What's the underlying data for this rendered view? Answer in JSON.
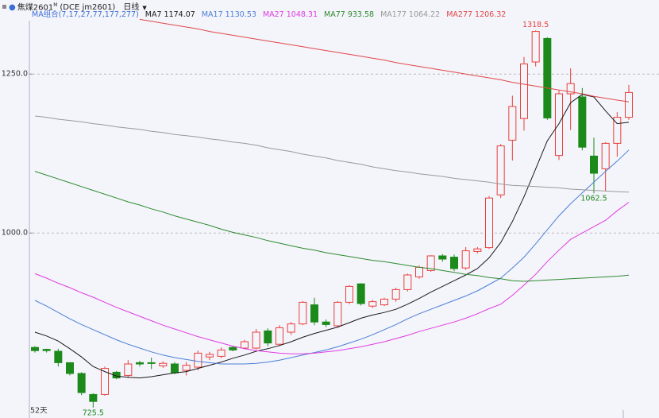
{
  "chart_data": {
    "type": "candlestick",
    "title": "焦煤2601",
    "title_sup": "M",
    "code": "(DCE jm2601)",
    "period": "日线",
    "ma_group": "MA组合(7,17,27,77,177,277)",
    "bar_count_label": "52天",
    "up_color": "#e8403a",
    "down_color": "#1b8a1b",
    "ylim": [
      709,
      1339
    ],
    "yticks": [
      {
        "value": 1000,
        "label": "1000.0"
      },
      {
        "value": 1250,
        "label": "1250.0"
      }
    ],
    "grid": true,
    "open": [
      820,
      817,
      814,
      796,
      779,
      746,
      746,
      781,
      776,
      796,
      796,
      791,
      794,
      784,
      789,
      805,
      806,
      820,
      819,
      819,
      846,
      825,
      844,
      857,
      887,
      860,
      854,
      891,
      920,
      885,
      887,
      896,
      911,
      931,
      941,
      964,
      962,
      945,
      971,
      977,
      1060,
      1146,
      1180,
      1269,
      1306,
      1122,
      1219,
      1214,
      1121,
      1101,
      1141,
      1182
    ],
    "high": [
      822,
      818,
      818,
      797,
      781,
      748,
      790,
      783,
      800,
      799,
      804,
      798,
      797,
      797,
      815,
      813,
      820,
      822,
      832,
      849,
      850,
      855,
      860,
      893,
      898,
      864,
      893,
      918,
      921,
      895,
      898,
      914,
      936,
      949,
      965,
      967,
      966,
      978,
      978,
      1058,
      1140,
      1216,
      1277,
      1318.5,
      1308,
      1224,
      1259,
      1228,
      1150,
      1143,
      1190,
      1233
    ],
    "low": [
      812,
      812,
      790,
      776,
      745,
      725.5,
      744,
      770,
      772,
      790,
      786,
      788,
      778,
      776,
      784,
      800,
      803,
      814,
      817,
      817,
      822,
      822,
      840,
      855,
      855,
      852,
      851,
      888,
      886,
      882,
      885,
      892,
      908,
      928,
      939,
      955,
      940,
      942,
      968,
      975,
      1055,
      1114,
      1161,
      1262,
      1178,
      1115,
      1162,
      1130,
      1062.5,
      1066,
      1120,
      1178
    ],
    "close": [
      815,
      815,
      796,
      779,
      749,
      735,
      787,
      772,
      794,
      794,
      795,
      795,
      780,
      792,
      811,
      809,
      816,
      816,
      829,
      844,
      827,
      851,
      857,
      891,
      860,
      856,
      891,
      916,
      889,
      892,
      896,
      911,
      934,
      946,
      964,
      959,
      944,
      972,
      975,
      1055,
      1137,
      1199,
      1266,
      1317,
      1181,
      1219,
      1235,
      1135,
      1094,
      1141,
      1182,
      1221
    ],
    "series": [
      {
        "name": "MA7",
        "color": "#1a1a1a",
        "values": [
          844,
          838,
          830,
          818,
          805,
          790,
          782,
          775,
          773,
          772,
          774,
          777,
          780,
          782,
          787,
          792,
          797,
          803,
          808,
          814,
          818,
          823,
          829,
          836,
          842,
          847,
          852,
          859,
          866,
          871,
          875,
          880,
          888,
          897,
          907,
          916,
          925,
          934,
          944,
          961,
          985,
          1018,
          1057,
          1101,
          1145,
          1172,
          1205,
          1218,
          1214,
          1192,
          1172,
          1174.07
        ]
      },
      {
        "name": "MA17",
        "color": "#4a7fd6",
        "values": [
          894,
          885,
          875,
          865,
          856,
          848,
          840,
          832,
          825,
          819,
          813,
          808,
          804,
          801,
          798,
          796,
          794,
          794,
          794,
          795,
          797,
          800,
          804,
          808,
          812,
          816,
          821,
          827,
          833,
          840,
          848,
          856,
          865,
          873,
          880,
          887,
          894,
          901,
          909,
          919,
          929,
          945,
          962,
          983,
          1005,
          1027,
          1046,
          1063,
          1080,
          1097,
          1113,
          1130.53
        ]
      },
      {
        "name": "MA27",
        "color": "#e03ce0",
        "values": [
          936,
          929,
          921,
          914,
          906,
          899,
          891,
          883,
          876,
          869,
          862,
          855,
          849,
          843,
          837,
          832,
          827,
          822,
          818,
          815,
          813,
          811,
          810,
          810,
          811,
          813,
          815,
          818,
          821,
          825,
          829,
          834,
          839,
          845,
          850,
          855,
          860,
          866,
          873,
          881,
          888,
          902,
          918,
          935,
          955,
          973,
          990,
          1000,
          1010,
          1020,
          1035,
          1048.31
        ]
      },
      {
        "name": "MA77",
        "color": "#2e8b2e",
        "values": [
          1097,
          1091,
          1085,
          1079,
          1073,
          1067,
          1061,
          1055,
          1049,
          1044,
          1038,
          1033,
          1027,
          1022,
          1017,
          1012,
          1006,
          1001,
          997,
          993,
          988,
          984,
          980,
          976,
          973,
          969,
          966,
          963,
          960,
          957,
          955,
          952,
          949,
          946,
          944,
          941,
          938,
          935,
          933,
          930,
          928,
          925,
          924,
          925,
          926,
          927,
          928,
          929,
          930,
          931,
          932,
          933.58
        ]
      },
      {
        "name": "MA177",
        "color": "#9a9a9a",
        "values": [
          1184,
          1182,
          1179,
          1177,
          1175,
          1172,
          1170,
          1167,
          1165,
          1163,
          1160,
          1158,
          1155,
          1153,
          1151,
          1148,
          1146,
          1143,
          1141,
          1138,
          1134,
          1131,
          1128,
          1124,
          1121,
          1118,
          1114,
          1111,
          1108,
          1104,
          1101,
          1098,
          1096,
          1093,
          1091,
          1089,
          1086,
          1084,
          1082,
          1080,
          1077,
          1075,
          1074,
          1073,
          1072,
          1071,
          1069,
          1068,
          1067,
          1066,
          1065,
          1064.22
        ]
      },
      {
        "name": "MA277",
        "color": "#e04848",
        "values": [
          null,
          null,
          null,
          null,
          null,
          null,
          null,
          null,
          null,
          1336,
          1333,
          1330,
          1327,
          1324,
          1321,
          1317,
          1314,
          1311,
          1308,
          1305,
          1302,
          1299,
          1296,
          1293,
          1290,
          1287,
          1284,
          1281,
          1278,
          1275,
          1272,
          1268,
          1265,
          1262,
          1259,
          1256,
          1253,
          1250,
          1247,
          1244,
          1241,
          1237,
          1234,
          1231,
          1228,
          1225,
          1222,
          1219,
          1215,
          1212,
          1209,
          1206.32
        ]
      }
    ]
  }
}
